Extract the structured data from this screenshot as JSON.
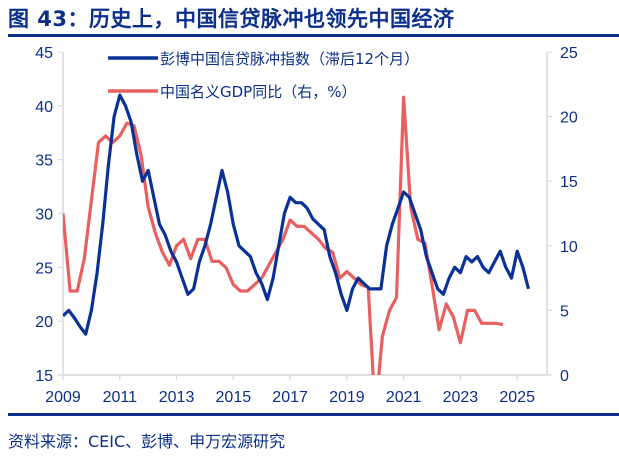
{
  "title": "图 43：历史上，中国信贷脉冲也领先中国经济",
  "source": "资料来源：CEIC、彭博、申万宏源研究",
  "colors": {
    "brand": "#0b2f8a",
    "series_credit": "#0a3296",
    "series_gdp": "#e86060",
    "axis": "#d9d9d9"
  },
  "legend": {
    "credit": "彭博中国信贷脉冲指数（滞后12个月）",
    "gdp": "中国名义GDP同比（右，%）"
  },
  "chart_data": {
    "type": "line",
    "title": "图 43：历史上，中国信贷脉冲也领先中国经济",
    "xlabel": "",
    "ylabel_left": "",
    "ylabel_right": "%",
    "x_ticks": [
      "2009",
      "2011",
      "2013",
      "2015",
      "2017",
      "2019",
      "2021",
      "2023",
      "2025"
    ],
    "y_left": {
      "ticks": [
        15,
        20,
        25,
        30,
        35,
        40,
        45
      ],
      "range": [
        15,
        45
      ]
    },
    "y_right": {
      "ticks": [
        0,
        5,
        10,
        15,
        20,
        25
      ],
      "range": [
        0,
        25
      ]
    },
    "grid": false,
    "legend_position": "top-inside",
    "series": [
      {
        "name": "彭博中国信贷脉冲指数（滞后12个月）",
        "axis": "left",
        "x": [
          2009.0,
          2009.2,
          2009.4,
          2009.6,
          2009.8,
          2010.0,
          2010.2,
          2010.4,
          2010.6,
          2010.8,
          2011.0,
          2011.2,
          2011.4,
          2011.6,
          2011.8,
          2012.0,
          2012.2,
          2012.4,
          2012.6,
          2012.8,
          2013.0,
          2013.2,
          2013.4,
          2013.6,
          2013.8,
          2014.0,
          2014.2,
          2014.4,
          2014.6,
          2014.8,
          2015.0,
          2015.2,
          2015.4,
          2015.6,
          2015.8,
          2016.0,
          2016.2,
          2016.4,
          2016.6,
          2016.8,
          2017.0,
          2017.2,
          2017.4,
          2017.6,
          2017.8,
          2018.0,
          2018.2,
          2018.4,
          2018.6,
          2018.8,
          2019.0,
          2019.2,
          2019.4,
          2019.6,
          2019.8,
          2020.0,
          2020.2,
          2020.4,
          2020.6,
          2020.8,
          2021.0,
          2021.2,
          2021.4,
          2021.6,
          2021.8,
          2022.0,
          2022.2,
          2022.4,
          2022.6,
          2022.8,
          2023.0,
          2023.2,
          2023.4,
          2023.6,
          2023.8,
          2024.0,
          2024.2,
          2024.4,
          2024.6,
          2024.8,
          2025.0,
          2025.2,
          2025.4
        ],
        "values": [
          20.5,
          21.0,
          20.3,
          19.5,
          18.8,
          21.0,
          24.5,
          29.0,
          34.5,
          39.0,
          41.0,
          40.0,
          38.5,
          35.5,
          33.0,
          34.0,
          31.5,
          29.0,
          28.0,
          26.5,
          25.5,
          24.0,
          22.5,
          23.0,
          25.5,
          27.0,
          29.0,
          31.5,
          34.0,
          32.0,
          29.0,
          27.0,
          26.5,
          26.0,
          24.5,
          23.5,
          22.0,
          24.0,
          27.0,
          30.0,
          31.5,
          31.0,
          31.0,
          30.5,
          29.5,
          29.0,
          28.5,
          26.0,
          24.5,
          22.5,
          21.0,
          23.0,
          24.0,
          23.5,
          23.0,
          23.0,
          23.0,
          27.0,
          29.0,
          30.5,
          32.0,
          31.5,
          30.0,
          28.5,
          26.0,
          24.5,
          23.0,
          22.5,
          24.0,
          25.0,
          24.5,
          26.0,
          25.5,
          26.0,
          25.0,
          24.5,
          25.5,
          26.5,
          25.0,
          24.0,
          26.5,
          25.0,
          23.0
        ]
      },
      {
        "name": "中国名义GDP同比（右，%）",
        "axis": "right",
        "x": [
          2009.0,
          2009.25,
          2009.5,
          2009.75,
          2010.0,
          2010.25,
          2010.5,
          2010.75,
          2011.0,
          2011.25,
          2011.5,
          2011.75,
          2012.0,
          2012.25,
          2012.5,
          2012.75,
          2013.0,
          2013.25,
          2013.5,
          2013.75,
          2014.0,
          2014.25,
          2014.5,
          2014.75,
          2015.0,
          2015.25,
          2015.5,
          2015.75,
          2016.0,
          2016.25,
          2016.5,
          2016.75,
          2017.0,
          2017.25,
          2017.5,
          2017.75,
          2018.0,
          2018.25,
          2018.5,
          2018.75,
          2019.0,
          2019.25,
          2019.5,
          2019.75,
          2020.0,
          2020.25,
          2020.5,
          2020.75,
          2021.0,
          2021.25,
          2021.5,
          2021.75,
          2022.0,
          2022.25,
          2022.5,
          2022.75,
          2023.0,
          2023.25,
          2023.5,
          2023.75,
          2024.0,
          2024.25,
          2024.5
        ],
        "values": [
          12.5,
          6.5,
          6.5,
          9.0,
          13.5,
          18.0,
          18.5,
          18.0,
          18.5,
          19.5,
          19.3,
          17.0,
          13.0,
          11.0,
          9.5,
          8.5,
          10.0,
          10.5,
          9.0,
          10.5,
          10.5,
          8.8,
          8.8,
          8.3,
          7.0,
          6.5,
          6.5,
          7.0,
          7.5,
          8.5,
          9.5,
          10.5,
          12.0,
          11.5,
          11.5,
          11.0,
          10.5,
          9.8,
          9.5,
          7.5,
          8.0,
          7.5,
          7.0,
          6.8,
          -3.0,
          3.0,
          5.0,
          6.0,
          21.5,
          13.0,
          10.5,
          10.2,
          7.0,
          3.5,
          5.5,
          4.5,
          2.5,
          5.0,
          5.0,
          4.0,
          4.0,
          4.0,
          3.9
        ]
      }
    ]
  }
}
